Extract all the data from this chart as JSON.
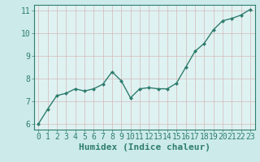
{
  "x": [
    0,
    1,
    2,
    3,
    4,
    5,
    6,
    7,
    8,
    9,
    10,
    11,
    12,
    13,
    14,
    15,
    16,
    17,
    18,
    19,
    20,
    21,
    22,
    23
  ],
  "y": [
    6.0,
    6.65,
    7.25,
    7.35,
    7.55,
    7.45,
    7.55,
    7.75,
    8.3,
    7.9,
    7.15,
    7.55,
    7.6,
    7.55,
    7.55,
    7.8,
    8.5,
    9.2,
    9.55,
    10.15,
    10.55,
    10.65,
    10.8,
    11.05
  ],
  "line_color": "#2e7d6e",
  "marker_color": "#2e7d6e",
  "bg_color": "#cceaea",
  "grid_color_major": "#c0d8d8",
  "grid_color_minor": "#dbeaea",
  "axes_bg": "#dff2f2",
  "xlabel": "Humidex (Indice chaleur)",
  "xlim": [
    0,
    23
  ],
  "ylim": [
    5.75,
    11.25
  ],
  "yticks": [
    6,
    7,
    8,
    9,
    10,
    11
  ],
  "xticks": [
    0,
    1,
    2,
    3,
    4,
    5,
    6,
    7,
    8,
    9,
    10,
    11,
    12,
    13,
    14,
    15,
    16,
    17,
    18,
    19,
    20,
    21,
    22,
    23
  ],
  "tick_color": "#2e7d6e",
  "label_color": "#2e7d6e",
  "spine_color": "#2e7d6e",
  "font_size_xlabel": 8,
  "font_size_ticks": 7,
  "marker_size": 2.5,
  "line_width": 1.0
}
